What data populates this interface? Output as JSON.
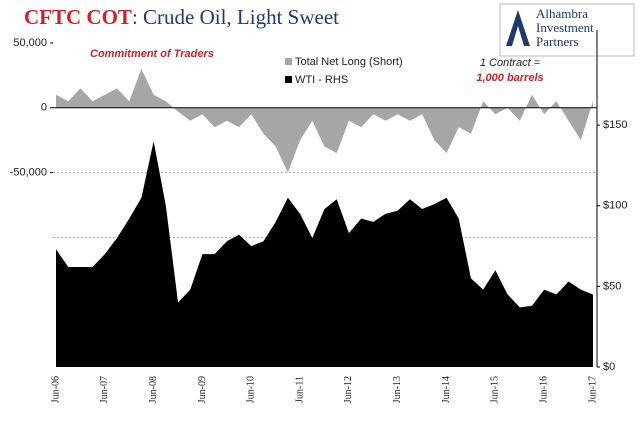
{
  "chart_data": {
    "type": "area",
    "title": {
      "highlight": "CFTC COT",
      "rest": ": Crude Oil, Light Sweet"
    },
    "logo": [
      "Alhambra",
      "Investment",
      "Partners"
    ],
    "annotations": {
      "left": "Commitment of Traders",
      "contract": "1 Contract =",
      "barrels": "1,000 barrels"
    },
    "categories": [
      "Jun-06",
      null,
      null,
      null,
      "Jun-07",
      null,
      null,
      null,
      "Jun-08",
      null,
      null,
      null,
      "Jun-09",
      null,
      null,
      null,
      "Jun-10",
      null,
      null,
      null,
      "Jun-11",
      null,
      null,
      null,
      "Jun-12",
      null,
      null,
      null,
      "Jun-13",
      null,
      null,
      null,
      "Jun-14",
      null,
      null,
      null,
      "Jun-15",
      null,
      null,
      null,
      "Jun-16",
      null,
      null,
      null,
      "Jun-17"
    ],
    "series": [
      {
        "name": "Total Net Long (Short)",
        "color": "#a6a6a6",
        "axis": "y",
        "values": [
          10000,
          5000,
          15000,
          5000,
          10000,
          15000,
          5000,
          30000,
          10000,
          5000,
          -3000,
          -10000,
          -5000,
          -15000,
          -10000,
          -15000,
          -5000,
          -20000,
          -30000,
          -50000,
          -25000,
          -10000,
          -30000,
          -35000,
          -10000,
          -15000,
          -5000,
          -10000,
          -5000,
          -10000,
          -5000,
          -25000,
          -35000,
          -15000,
          -20000,
          5000,
          -5000,
          0,
          -10000,
          10000,
          -5000,
          5000,
          -10000,
          -25000,
          5000
        ]
      },
      {
        "name": "WTI - RHS",
        "color": "#000000",
        "axis": "y2",
        "values": [
          73,
          62,
          62,
          62,
          70,
          80,
          92,
          105,
          140,
          100,
          40,
          48,
          70,
          70,
          78,
          82,
          75,
          78,
          90,
          105,
          95,
          80,
          98,
          104,
          83,
          92,
          90,
          95,
          97,
          104,
          98,
          101,
          105,
          92,
          55,
          48,
          60,
          45,
          37,
          38,
          48,
          45,
          53,
          48,
          45
        ]
      }
    ],
    "ylim": [
      -200000,
      60000
    ],
    "yticks": [
      {
        "value": 50000,
        "label": "50,000"
      },
      0,
      {
        "value": -50000,
        "label": "-50,000"
      }
    ],
    "grid_lines": [
      -50000,
      -100000
    ],
    "y2lim": [
      0,
      209
    ],
    "y2ticks": [
      {
        "value": 150,
        "label": "$150"
      },
      {
        "value": 100,
        "label": "$100"
      },
      {
        "value": 50,
        "label": "$50"
      },
      {
        "value": 0,
        "label": "$0"
      }
    ]
  }
}
